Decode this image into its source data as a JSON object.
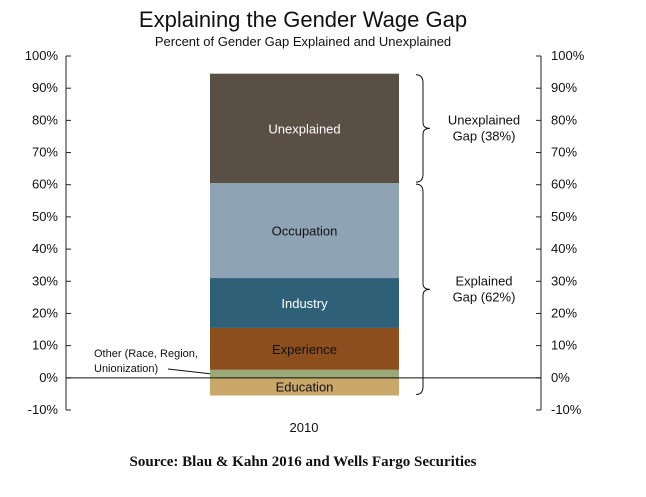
{
  "chart_data": {
    "type": "bar",
    "title": "Explaining the Gender Wage Gap",
    "subtitle": "Percent of Gender Gap Explained and Unexplained",
    "categories": [
      "2010"
    ],
    "ylim": [
      -10,
      100
    ],
    "yticks": [
      -10,
      0,
      10,
      20,
      30,
      40,
      50,
      60,
      70,
      80,
      90,
      100
    ],
    "ytick_suffix": "%",
    "stacked": true,
    "series": [
      {
        "name": "Education",
        "range": [
          -5.5,
          0
        ],
        "color": "#c9a86a",
        "label_color": "#111111"
      },
      {
        "name": "Other (Race, Region, Unionization)",
        "range": [
          0,
          2.5
        ],
        "color": "#9ba878",
        "label_color": "#111111"
      },
      {
        "name": "Experience",
        "range": [
          2.5,
          15.5
        ],
        "color": "#8c4e1c",
        "label_color": "#111111"
      },
      {
        "name": "Industry",
        "range": [
          15.5,
          31
        ],
        "color": "#2e6078",
        "label_color": "#ffffff"
      },
      {
        "name": "Occupation",
        "range": [
          31,
          60.5
        ],
        "color": "#8ea3b4",
        "label_color": "#111111"
      },
      {
        "name": "Unexplained",
        "range": [
          60.5,
          94.5
        ],
        "color": "#5a4f45",
        "label_color": "#ffffff"
      }
    ],
    "annotations": [
      {
        "lines": [
          "Unexplained",
          "Gap (38%)"
        ],
        "range": [
          60.5,
          94.5
        ]
      },
      {
        "lines": [
          "Explained",
          "Gap (62%)"
        ],
        "range": [
          -5.5,
          60.5
        ]
      }
    ],
    "other_note": [
      "Other (Race, Region,",
      "Unionization)"
    ],
    "source": "Source: Blau & Kahn 2016 and Wells Fargo Securities"
  }
}
